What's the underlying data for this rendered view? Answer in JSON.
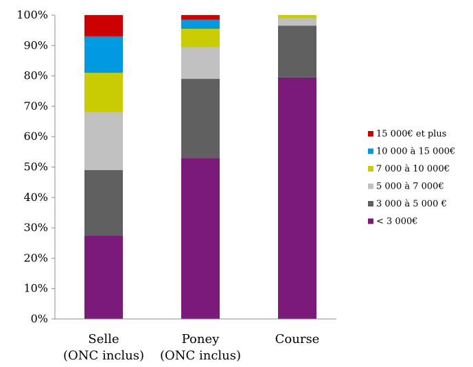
{
  "chart_data": {
    "type": "bar",
    "stacked": true,
    "percent": true,
    "categories": [
      [
        "Selle",
        "(ONC inclus)"
      ],
      [
        "Poney",
        "(ONC inclus)"
      ],
      [
        "Course"
      ]
    ],
    "ylim": [
      0,
      100
    ],
    "yticks": [
      0,
      10,
      20,
      30,
      40,
      50,
      60,
      70,
      80,
      90,
      100
    ],
    "ytick_labels": [
      "0%",
      "10%",
      "20%",
      "30%",
      "40%",
      "50%",
      "60%",
      "70%",
      "80%",
      "90%",
      "100%"
    ],
    "grid": false,
    "legend_position": "right",
    "series": [
      {
        "name": "< 3 000€",
        "color": "#7B1A7B",
        "values": [
          27.5,
          53,
          79.5
        ]
      },
      {
        "name": "3 000 à 5 000 €",
        "color": "#606060",
        "values": [
          21.5,
          26,
          17
        ]
      },
      {
        "name": "5 000 à 7 000€",
        "color": "#C0C0C0",
        "values": [
          19,
          10.5,
          2.5
        ]
      },
      {
        "name": "7 000 à 10 000€",
        "color": "#C8CC00",
        "values": [
          13,
          6,
          1
        ]
      },
      {
        "name": "10 000 à 15 000€",
        "color": "#0099E0",
        "values": [
          12,
          3,
          0
        ]
      },
      {
        "name": "15 000€ et plus",
        "color": "#CC0000",
        "values": [
          7,
          1.5,
          0
        ]
      }
    ]
  }
}
